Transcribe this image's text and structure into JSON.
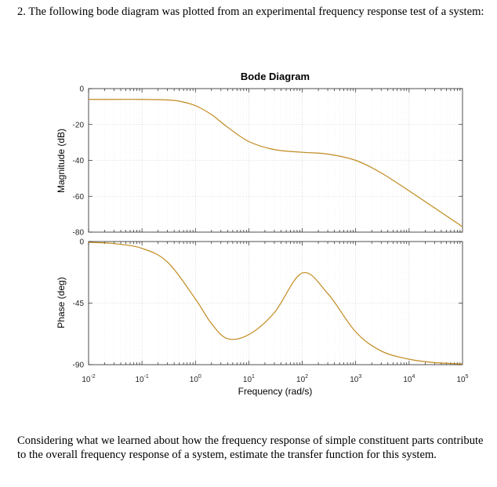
{
  "question": {
    "intro": "2. The following bode diagram was plotted from an experimental frequency response test of a system:",
    "prompt": "Considering what we learned about how the frequency response of simple constituent parts contribute to the overall frequency response of a system, estimate the transfer function for this system."
  },
  "chart_data": {
    "type": "line",
    "title": "Bode Diagram",
    "xlabel": "Frequency (rad/s)",
    "xscale": "log",
    "xlim": [
      0.01,
      100000
    ],
    "xticks": [
      {
        "base": "10",
        "exp": "-2"
      },
      {
        "base": "10",
        "exp": "-1"
      },
      {
        "base": "10",
        "exp": "0"
      },
      {
        "base": "10",
        "exp": "1"
      },
      {
        "base": "10",
        "exp": "2"
      },
      {
        "base": "10",
        "exp": "3"
      },
      {
        "base": "10",
        "exp": "4"
      },
      {
        "base": "10",
        "exp": "5"
      }
    ],
    "grid": true,
    "line_color": "#C08A1E",
    "magnitude": {
      "ylabel": "Magnitude (dB)",
      "ylim": [
        -80,
        0
      ],
      "yticks": [
        "0",
        "-20",
        "-40",
        "-60",
        "-80"
      ],
      "x": [
        0.01,
        0.03,
        0.1,
        0.3,
        0.5,
        1,
        2,
        4,
        10,
        30,
        100,
        300,
        1000,
        3000,
        10000,
        30000,
        100000
      ],
      "y": [
        -6,
        -6,
        -6,
        -6.3,
        -7,
        -9.5,
        -14.5,
        -21.5,
        -29.5,
        -34,
        -35.5,
        -36.5,
        -40,
        -47,
        -57,
        -66.5,
        -77
      ]
    },
    "phase": {
      "ylabel": "Phase (deg)",
      "ylim": [
        -90,
        0
      ],
      "yticks": [
        "0",
        "-45",
        "-90"
      ],
      "x": [
        0.01,
        0.03,
        0.1,
        0.3,
        1,
        2,
        4,
        10,
        30,
        100,
        300,
        1000,
        3000,
        10000,
        30000,
        100000
      ],
      "y": [
        -0.6,
        -1.5,
        -5,
        -15,
        -42,
        -60,
        -71,
        -68,
        -52,
        -23,
        -38,
        -66,
        -80,
        -86,
        -88.5,
        -89.5
      ]
    }
  }
}
